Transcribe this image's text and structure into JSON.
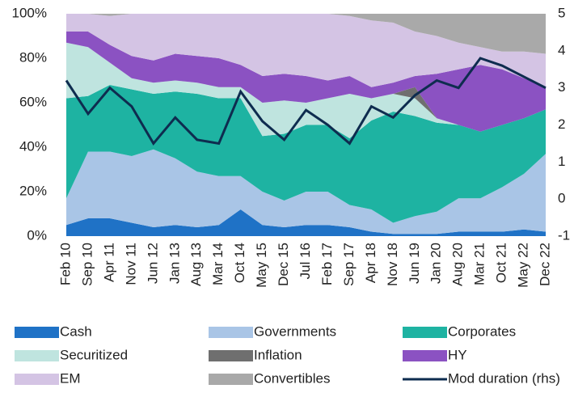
{
  "chart_data": {
    "type": "stacked-area-line",
    "categories": [
      "Feb 10",
      "Sep 10",
      "Apr 11",
      "Nov 11",
      "Jun 12",
      "Jan 13",
      "Aug 13",
      "Mar 14",
      "Oct 14",
      "May 15",
      "Dec 15",
      "Jul 16",
      "Feb 17",
      "Sep 17",
      "Apr 18",
      "Nov 18",
      "Jun 19",
      "Jan 20",
      "Aug 20",
      "Mar 21",
      "Oct 21",
      "May 22",
      "Dec 22"
    ],
    "series": [
      {
        "name": "Cash",
        "color": "#1f72c6",
        "values": [
          5,
          8,
          8,
          6,
          4,
          5,
          4,
          5,
          12,
          5,
          4,
          5,
          5,
          4,
          2,
          1,
          1,
          1,
          2,
          2,
          2,
          3,
          2
        ]
      },
      {
        "name": "Governments",
        "color": "#a9c5e6",
        "values": [
          12,
          30,
          30,
          30,
          35,
          30,
          25,
          22,
          15,
          15,
          12,
          15,
          15,
          10,
          10,
          5,
          8,
          10,
          15,
          15,
          20,
          25,
          35
        ]
      },
      {
        "name": "Corporates",
        "color": "#1eb3a2",
        "values": [
          45,
          25,
          30,
          30,
          25,
          30,
          35,
          35,
          35,
          25,
          30,
          30,
          30,
          30,
          40,
          50,
          45,
          40,
          33,
          30,
          28,
          25,
          20
        ]
      },
      {
        "name": "Securitized",
        "color": "#bfe4df",
        "values": [
          25,
          22,
          10,
          5,
          5,
          5,
          5,
          5,
          5,
          15,
          15,
          10,
          12,
          20,
          10,
          8,
          8,
          2,
          0,
          0,
          0,
          0,
          0
        ]
      },
      {
        "name": "Inflation",
        "color": "#6f6f6f",
        "values": [
          0,
          0,
          0,
          0,
          0,
          0,
          0,
          0,
          0,
          0,
          0,
          0,
          0,
          0,
          0,
          0,
          5,
          0,
          0,
          0,
          0,
          0,
          0
        ]
      },
      {
        "name": "HY",
        "color": "#8b52c2",
        "values": [
          5,
          7,
          8,
          10,
          10,
          12,
          12,
          13,
          10,
          12,
          12,
          12,
          8,
          8,
          5,
          5,
          5,
          20,
          25,
          30,
          25,
          18,
          10
        ]
      },
      {
        "name": "EM",
        "color": "#d4c4e4",
        "values": [
          8,
          8,
          13,
          19,
          21,
          18,
          19,
          20,
          23,
          28,
          27,
          28,
          30,
          27,
          30,
          27,
          20,
          17,
          12,
          8,
          8,
          12,
          15
        ]
      },
      {
        "name": "Convertibles",
        "color": "#a9a9a9",
        "values": [
          0,
          0,
          1,
          0,
          0,
          0,
          0,
          0,
          0,
          0,
          0,
          0,
          0,
          1,
          3,
          4,
          8,
          10,
          13,
          15,
          17,
          17,
          18
        ]
      },
      {
        "name": "Mod duration (rhs)",
        "color": "#0e2c4f",
        "axis": "y2",
        "values": [
          3.2,
          2.3,
          3.0,
          2.5,
          1.5,
          2.2,
          1.6,
          1.5,
          2.9,
          2.1,
          1.6,
          2.4,
          2.0,
          1.5,
          2.5,
          2.2,
          2.8,
          3.2,
          3.0,
          3.8,
          3.6,
          3.3,
          3.0
        ]
      }
    ],
    "ylim": [
      0,
      100
    ],
    "yticks": [
      {
        "value": 0,
        "label": "0%"
      },
      {
        "value": 20,
        "label": "20%"
      },
      {
        "value": 40,
        "label": "40%"
      },
      {
        "value": 60,
        "label": "60%"
      },
      {
        "value": 80,
        "label": "80%"
      },
      {
        "value": 100,
        "label": "100%"
      }
    ],
    "y2lim": [
      -1,
      5
    ],
    "y2ticks": [
      -1,
      0,
      1,
      2,
      3,
      4,
      5
    ]
  }
}
